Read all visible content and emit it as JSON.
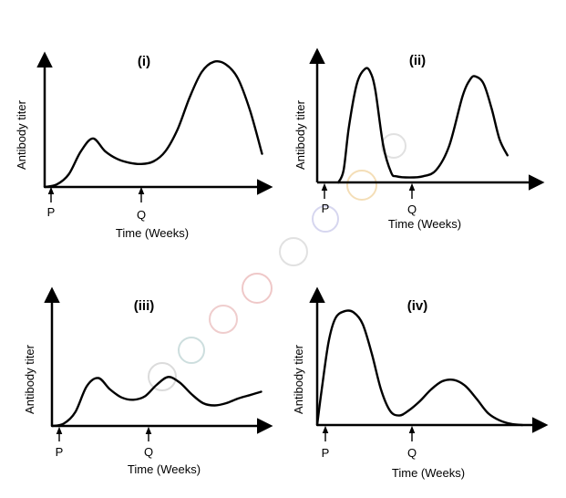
{
  "chart_data": [
    {
      "type": "line",
      "title": "(i)",
      "xlabel": "Time (Weeks)",
      "ylabel": "Antibody titer",
      "markers": [
        "P",
        "Q"
      ],
      "curve_description_values": {
        "x": [
          0,
          0.05,
          0.1,
          0.15,
          0.2,
          0.25,
          0.3,
          0.35,
          0.4,
          0.45,
          0.5,
          0.55,
          0.6,
          0.65,
          0.7,
          0.75,
          0.8,
          0.85,
          0.9
        ],
        "y": [
          0.0,
          0.02,
          0.1,
          0.28,
          0.38,
          0.28,
          0.22,
          0.19,
          0.18,
          0.2,
          0.28,
          0.45,
          0.7,
          0.9,
          0.98,
          0.96,
          0.85,
          0.6,
          0.26
        ]
      }
    },
    {
      "type": "line",
      "title": "(ii)",
      "xlabel": "Time (Weeks)",
      "ylabel": "Antibody titer",
      "markers": [
        "P",
        "Q"
      ],
      "curve_description_values": {
        "x": [
          0.08,
          0.1,
          0.12,
          0.15,
          0.18,
          0.2,
          0.22,
          0.25,
          0.28,
          0.3,
          0.35,
          0.4,
          0.45,
          0.5,
          0.55,
          0.58,
          0.6,
          0.63,
          0.66,
          0.69,
          0.72
        ],
        "y": [
          0.0,
          0.1,
          0.45,
          0.8,
          0.92,
          0.9,
          0.75,
          0.3,
          0.08,
          0.05,
          0.04,
          0.05,
          0.1,
          0.3,
          0.7,
          0.84,
          0.86,
          0.8,
          0.6,
          0.35,
          0.22
        ]
      }
    },
    {
      "type": "line",
      "title": "(iii)",
      "xlabel": "Time (Weeks)",
      "ylabel": "Antibody titer",
      "markers": [
        "P",
        "Q"
      ],
      "curve_description_values": {
        "x": [
          0.0,
          0.05,
          0.1,
          0.15,
          0.2,
          0.25,
          0.3,
          0.35,
          0.4,
          0.45,
          0.5,
          0.55,
          0.6,
          0.65,
          0.7,
          0.75,
          0.8,
          0.85,
          0.9
        ],
        "y": [
          0.0,
          0.02,
          0.12,
          0.35,
          0.42,
          0.32,
          0.25,
          0.23,
          0.26,
          0.36,
          0.43,
          0.38,
          0.28,
          0.2,
          0.18,
          0.2,
          0.24,
          0.27,
          0.3
        ]
      }
    },
    {
      "type": "line",
      "title": "(iv)",
      "xlabel": "Time (Weeks)",
      "ylabel": "Antibody titer",
      "markers": [
        "P",
        "Q"
      ],
      "curve_description_values": {
        "x": [
          0.0,
          0.02,
          0.05,
          0.08,
          0.12,
          0.16,
          0.2,
          0.24,
          0.28,
          0.32,
          0.36,
          0.4,
          0.45,
          0.5,
          0.55,
          0.6,
          0.65,
          0.7,
          0.75,
          0.8,
          0.85,
          0.9
        ],
        "y": [
          0.0,
          0.3,
          0.7,
          0.9,
          0.96,
          0.95,
          0.85,
          0.6,
          0.3,
          0.12,
          0.08,
          0.12,
          0.2,
          0.3,
          0.37,
          0.38,
          0.33,
          0.22,
          0.1,
          0.04,
          0.01,
          0.0
        ]
      }
    }
  ]
}
